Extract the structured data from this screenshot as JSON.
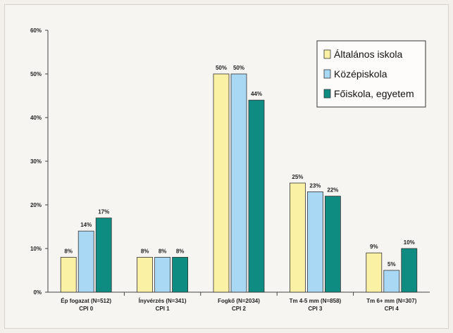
{
  "chart_data": {
    "type": "bar",
    "categories": [
      [
        "Ép fogazat (N=512)",
        "CPI 0"
      ],
      [
        "Ínyvérzés (N=341)",
        "CPI 1"
      ],
      [
        "Fogkő (N=2034)",
        "CPI 2"
      ],
      [
        "Tm 4-5 mm (N=858)",
        "CPI 3"
      ],
      [
        "Tm 6+ mm (N=307)",
        "CPI 4"
      ]
    ],
    "series": [
      {
        "name": "Általános iskola",
        "color": "#fbf1a5",
        "values": [
          8,
          8,
          50,
          25,
          9
        ]
      },
      {
        "name": "Középiskola",
        "color": "#a9d8f4",
        "values": [
          14,
          8,
          50,
          23,
          5
        ]
      },
      {
        "name": "Főiskola, egyetem",
        "color": "#0f8c82",
        "values": [
          17,
          8,
          44,
          22,
          10
        ]
      }
    ],
    "data_labels": [
      [
        "8%",
        "8%",
        "50%",
        "25%",
        "9%"
      ],
      [
        "14%",
        "8%",
        "50%",
        "23%",
        "5%"
      ],
      [
        "17%",
        "8%",
        "44%",
        "22%",
        "10%"
      ]
    ],
    "ylim": [
      0,
      60
    ],
    "yticks": [
      0,
      10,
      20,
      30,
      40,
      50,
      60
    ],
    "ytick_labels": [
      "0%",
      "10%",
      "20%",
      "30%",
      "40%",
      "50%",
      "60%"
    ],
    "grid": false,
    "legend_position": "top-right"
  }
}
